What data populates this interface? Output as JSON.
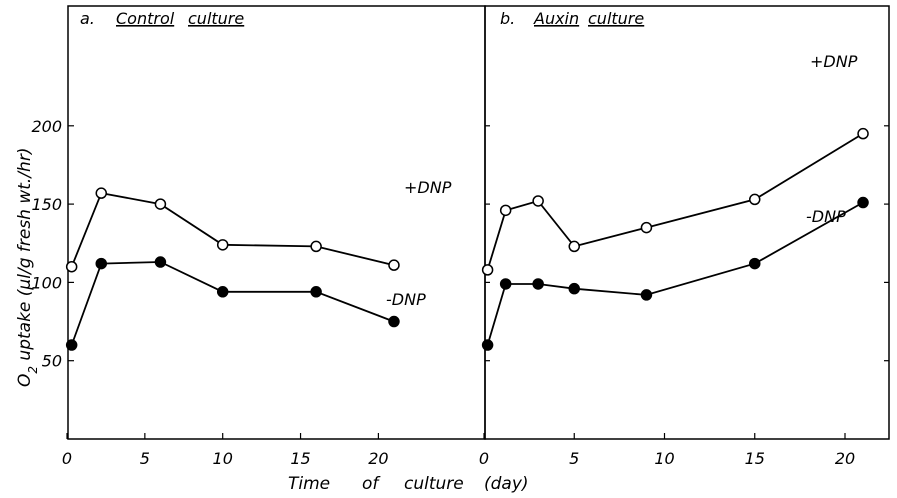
{
  "chart_data": [
    {
      "type": "line",
      "panel_letter": "a.",
      "title_words": [
        "Control",
        "culture"
      ],
      "ylabel": "O2 uptake (µl/g fresh wt./hr)",
      "ylabel_parts": {
        "o": "O",
        "sub": "2",
        "rest": " uptake  (µl/g  fresh  wt./hr)"
      },
      "xlabel": "Time of culture (day)",
      "xlim": [
        0,
        22
      ],
      "ylim": [
        0,
        225
      ],
      "xticks": [
        0,
        5,
        10,
        15,
        20
      ],
      "yticks": [
        50,
        100,
        150,
        200
      ],
      "series": [
        {
          "name": "+DNP",
          "marker": "open-circle",
          "x": [
            0.3,
            2.2,
            6,
            10,
            16,
            21
          ],
          "y": [
            110,
            157,
            150,
            124,
            123,
            111
          ]
        },
        {
          "name": "-DNP",
          "marker": "filled-circle",
          "x": [
            0.3,
            2.2,
            6,
            10,
            16,
            21
          ],
          "y": [
            60,
            112,
            113,
            94,
            94,
            75
          ]
        }
      ]
    },
    {
      "type": "line",
      "panel_letter": "b.",
      "title_words": [
        "Auxin",
        "culture"
      ],
      "xlabel": "Time of culture (day)",
      "xlim": [
        0,
        22
      ],
      "ylim": [
        0,
        225
      ],
      "xticks": [
        0,
        5,
        10,
        15,
        20
      ],
      "yticks": [
        50,
        100,
        150,
        200
      ],
      "series": [
        {
          "name": "+DNP",
          "marker": "open-circle",
          "x": [
            0.2,
            1.2,
            3,
            5,
            9,
            15,
            21
          ],
          "y": [
            108,
            146,
            152,
            123,
            135,
            153,
            195
          ]
        },
        {
          "name": "-DNP",
          "marker": "filled-circle",
          "x": [
            0.2,
            1.2,
            3,
            5,
            9,
            15,
            21
          ],
          "y": [
            60,
            99,
            99,
            96,
            92,
            112,
            151
          ]
        }
      ]
    }
  ],
  "xlabel_parts": {
    "time": "Time",
    "of": "of",
    "culture": "culture",
    "day": "(day)"
  }
}
